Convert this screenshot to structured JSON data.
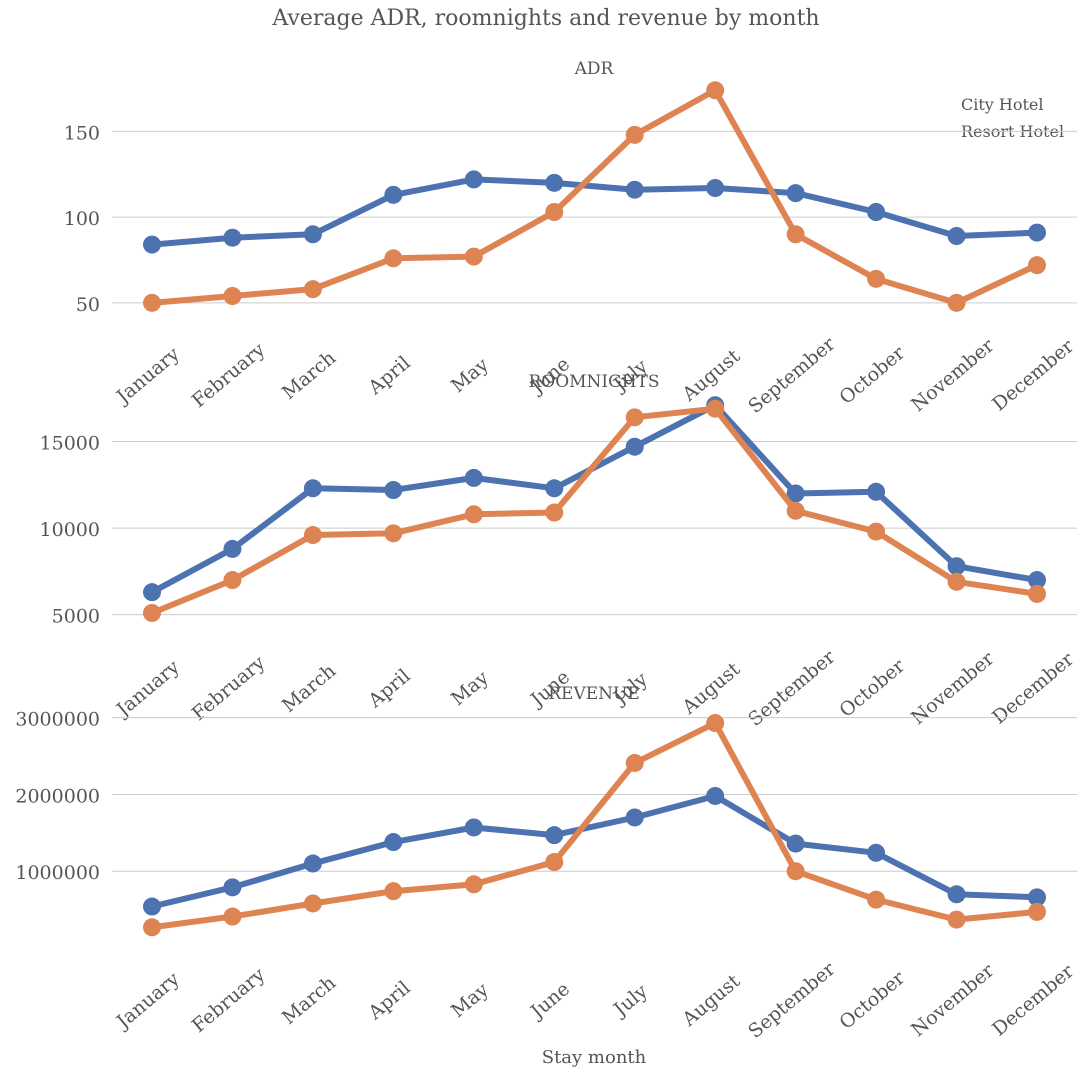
{
  "figure": {
    "title": "Average ADR, roomnights and revenue by month",
    "xlabel": "Stay month",
    "legend": {
      "position": "top-right",
      "entries": [
        "City Hotel",
        "Resort Hotel"
      ]
    },
    "colors": {
      "city": "#4c72b0",
      "resort": "#dd8452",
      "grid": "#cccccc",
      "text": "#555555"
    }
  },
  "chart_data": [
    {
      "type": "line",
      "title": "ADR",
      "categories": [
        "January",
        "February",
        "March",
        "April",
        "May",
        "June",
        "July",
        "August",
        "September",
        "October",
        "November",
        "December"
      ],
      "yticks": [
        50,
        100,
        150
      ],
      "ylim": [
        40,
        180
      ],
      "grid": true,
      "series": [
        {
          "name": "City Hotel",
          "values": [
            84,
            88,
            90,
            113,
            122,
            120,
            116,
            117,
            114,
            103,
            89,
            91
          ]
        },
        {
          "name": "Resort Hotel",
          "values": [
            50,
            54,
            58,
            76,
            77,
            103,
            148,
            174,
            90,
            64,
            50,
            72
          ]
        }
      ]
    },
    {
      "type": "line",
      "title": "ROOMNIGHTS",
      "categories": [
        "January",
        "February",
        "March",
        "April",
        "May",
        "June",
        "July",
        "August",
        "September",
        "October",
        "November",
        "December"
      ],
      "yticks": [
        5000,
        10000,
        15000
      ],
      "ylim": [
        4000,
        17400
      ],
      "grid": true,
      "series": [
        {
          "name": "City Hotel",
          "values": [
            6300,
            8800,
            12300,
            12200,
            12900,
            12300,
            14700,
            17100,
            12000,
            12100,
            7800,
            7000
          ]
        },
        {
          "name": "Resort Hotel",
          "values": [
            5100,
            7000,
            9600,
            9700,
            10800,
            10900,
            16400,
            16900,
            11000,
            9800,
            6900,
            6200
          ]
        }
      ]
    },
    {
      "type": "line",
      "title": "REVENUE",
      "categories": [
        "January",
        "February",
        "March",
        "April",
        "May",
        "June",
        "July",
        "August",
        "September",
        "October",
        "November",
        "December"
      ],
      "yticks": [
        1000000,
        2000000,
        3000000
      ],
      "ylim": [
        0,
        3100000
      ],
      "grid": true,
      "series": [
        {
          "name": "City Hotel",
          "values": [
            540000,
            790000,
            1100000,
            1380000,
            1570000,
            1470000,
            1700000,
            1980000,
            1360000,
            1240000,
            700000,
            660000
          ]
        },
        {
          "name": "Resort Hotel",
          "values": [
            270000,
            410000,
            580000,
            740000,
            830000,
            1120000,
            2410000,
            2930000,
            1000000,
            630000,
            370000,
            470000
          ]
        }
      ]
    }
  ]
}
